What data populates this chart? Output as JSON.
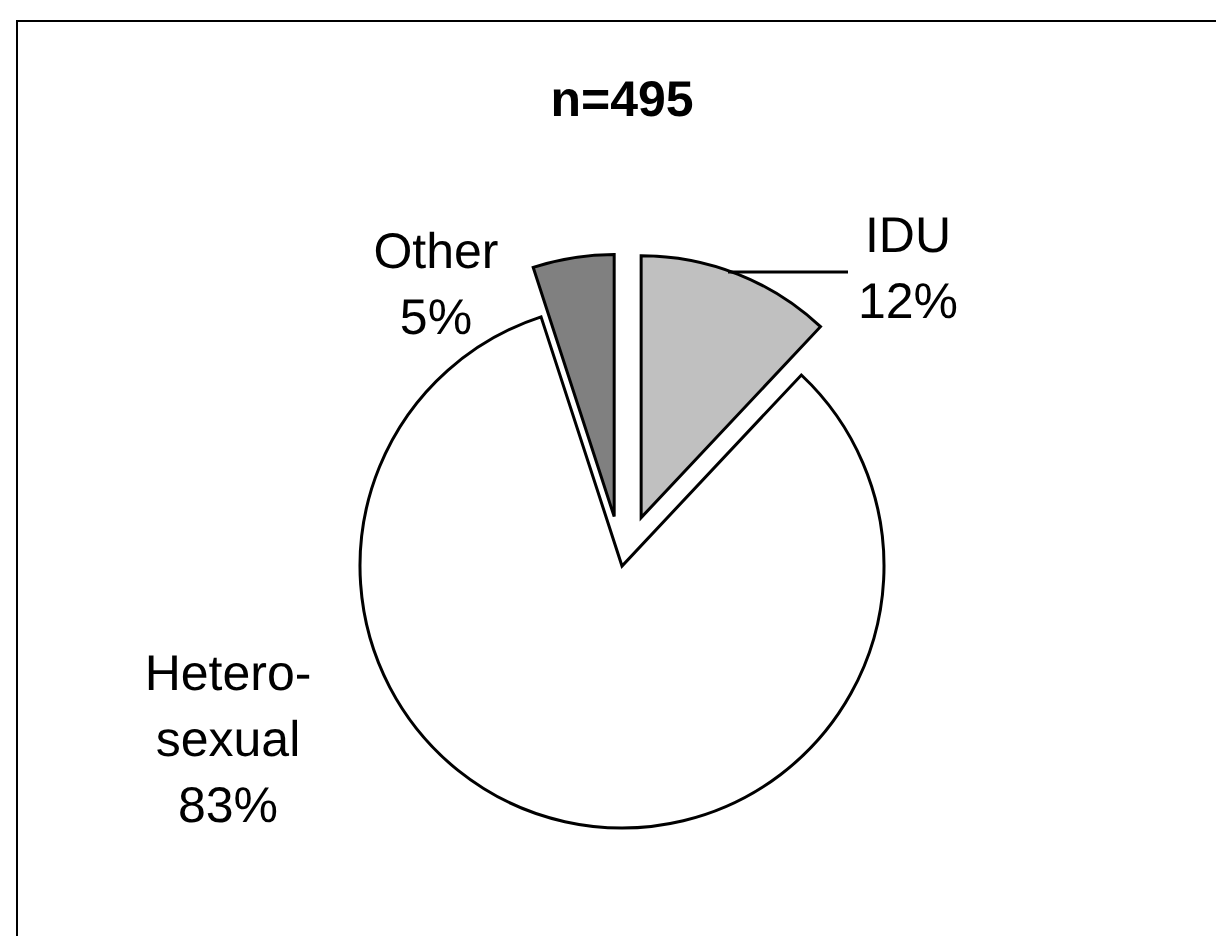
{
  "chart_data": {
    "type": "pie",
    "title": "n=495",
    "categories": [
      "IDU",
      "Hetero-sexual",
      "Other"
    ],
    "values": [
      12,
      83,
      5
    ],
    "colors": [
      "#c0c0c0",
      "#ffffff",
      "#808080"
    ],
    "value_labels": [
      "12%",
      "83%",
      "5%"
    ]
  }
}
